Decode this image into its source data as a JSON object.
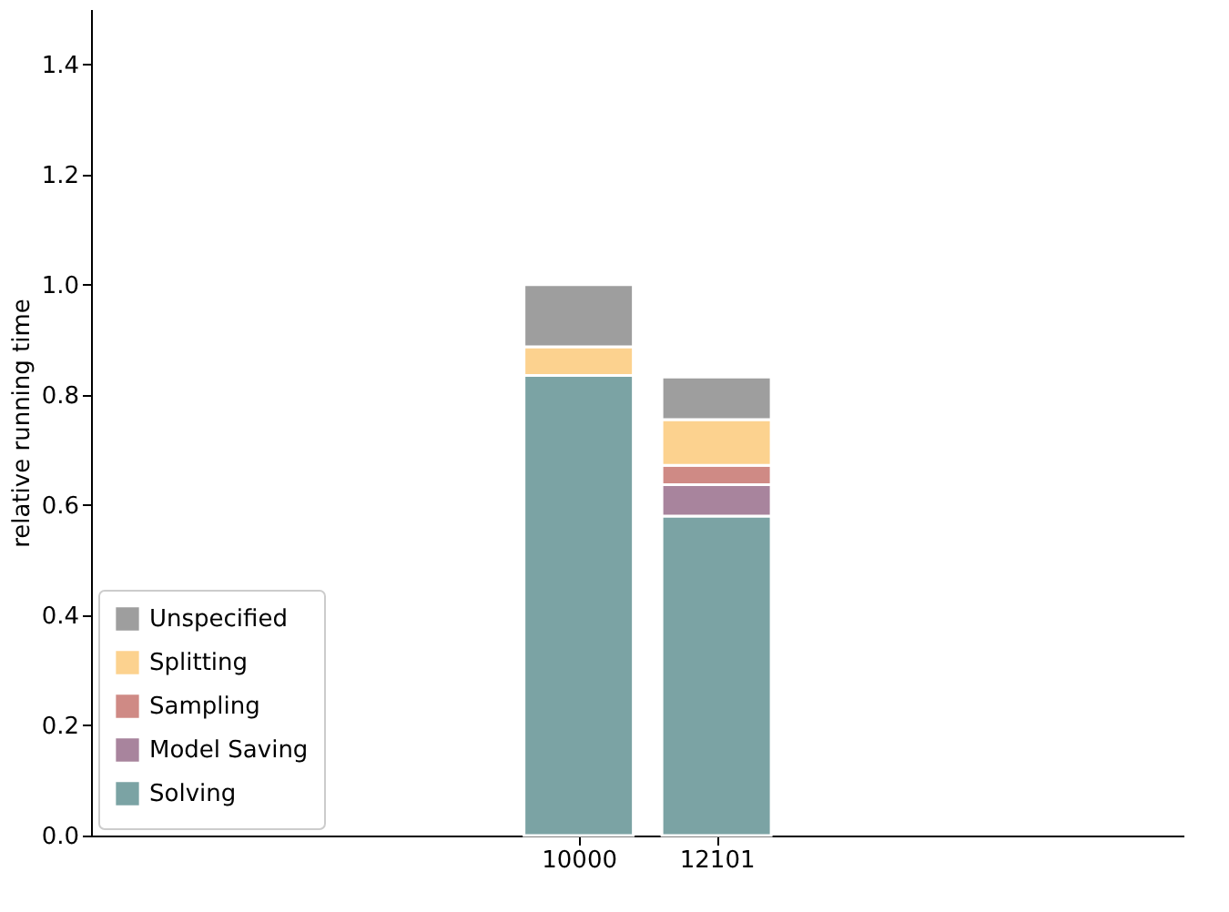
{
  "chart_data": {
    "type": "bar",
    "stacked": true,
    "ylabel": "relative running time",
    "categories": [
      "10000",
      "12101"
    ],
    "series": [
      {
        "name": "Solving",
        "color": "#7ba3a4",
        "values": [
          0.835,
          0.58
        ]
      },
      {
        "name": "Model Saving",
        "color": "#a8849d",
        "values": [
          null,
          0.057
        ]
      },
      {
        "name": "Sampling",
        "color": "#cf8a85",
        "values": [
          null,
          0.035
        ]
      },
      {
        "name": "Splitting",
        "color": "#fcd28f",
        "values": [
          0.052,
          0.083
        ]
      },
      {
        "name": "Unspecified",
        "color": "#9e9e9e",
        "values": [
          0.113,
          0.077
        ]
      }
    ],
    "ylim": [
      0,
      1.5
    ],
    "yticks": [
      {
        "value": 0,
        "label": "0.0"
      },
      0.2,
      0.4,
      0.6,
      0.8,
      {
        "value": 1,
        "label": "1.0"
      },
      1.2,
      1.4
    ],
    "grid": false,
    "legend": "bottom left"
  }
}
